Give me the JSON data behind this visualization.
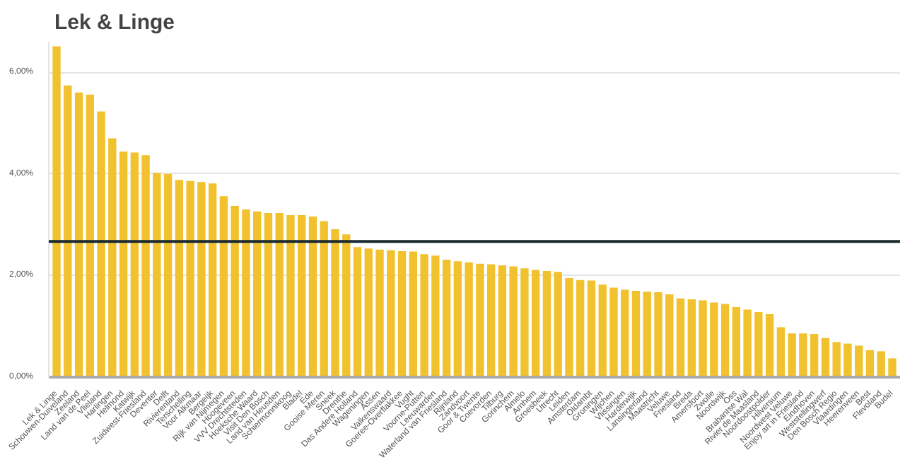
{
  "chart_data": {
    "type": "bar",
    "title": "Lek & Linge",
    "categories": [
      "Lek & Linge",
      "Schouwen-Duiveland",
      "Zeeland",
      "Land van de Peel",
      "Vlieland",
      "Harlingen",
      "Helmond",
      "Katwijk",
      "Zuidwest-Friesland",
      "Deventer",
      "Delft",
      "Rivierenland",
      "Terschelling",
      "Voor Alkmaar",
      "Bergeijk",
      "Rijk van Nijmegen",
      "Hoogeveen",
      "VVV Drechtsteden",
      "Hoeksche Waard",
      "Visit Den Bosch",
      "Land van Heusden",
      "Schiermonnikoog",
      "Bladel",
      "Ede",
      "Gooise Meren",
      "Sneek",
      "Drenthe",
      "Das Andere Holland",
      "Wageningen",
      "Assen",
      "Valkenswaard",
      "Goeree-Overflakkee",
      "Vught",
      "Voorne-Putten",
      "Leeuwarden",
      "Waterland van Friesland",
      "Rijnland",
      "Zandvoort",
      "Goor & Twente",
      "Coevorden",
      "Tilburg",
      "Gorinchem",
      "Almelo",
      "Arnhem",
      "Groesbeek",
      "Utrecht",
      "Leiden",
      "Amsterdam",
      "Oldambt",
      "Groningen",
      "Wijchen",
      "Vlissingen",
      "Harderwijk",
      "Lansingerland",
      "Maastricht",
      "Veluwe",
      "Friesland",
      "Breda",
      "Amersfoort",
      "Zwolle",
      "Noordwijk",
      "Oss",
      "Brabantse Wal",
      "Rivier de Maasland",
      "Noordoostpolder",
      "Hilversum",
      "Noordwest Veluwe",
      "Enjoy art in Friesland",
      "Eindhoven",
      "Weststellingwerf",
      "Den Bosch Regio",
      "Vlaardingen",
      "Heerenveen",
      "Best",
      "Flevoland",
      "Budel"
    ],
    "values": [
      6.51,
      5.74,
      5.6,
      5.56,
      5.23,
      4.7,
      4.44,
      4.42,
      4.37,
      4.02,
      4.0,
      3.88,
      3.86,
      3.84,
      3.81,
      3.56,
      3.37,
      3.3,
      3.26,
      3.23,
      3.23,
      3.19,
      3.19,
      3.16,
      3.07,
      2.91,
      2.81,
      2.56,
      2.53,
      2.51,
      2.5,
      2.48,
      2.47,
      2.42,
      2.39,
      2.31,
      2.28,
      2.26,
      2.23,
      2.22,
      2.2,
      2.18,
      2.14,
      2.11,
      2.09,
      2.07,
      1.95,
      1.91,
      1.9,
      1.82,
      1.76,
      1.72,
      1.7,
      1.68,
      1.67,
      1.63,
      1.55,
      1.53,
      1.51,
      1.47,
      1.44,
      1.38,
      1.33,
      1.28,
      1.24,
      0.98,
      0.86,
      0.86,
      0.85,
      0.77,
      0.69,
      0.66,
      0.62,
      0.53,
      0.51,
      0.37
    ],
    "color": "#f2c12e",
    "ylim": [
      0,
      6.6
    ],
    "yticks": [
      {
        "value": 0,
        "label": "0,00%"
      },
      {
        "value": 2,
        "label": "2,00%"
      },
      {
        "value": 4,
        "label": "4,00%"
      },
      {
        "value": 6,
        "label": "6,00%"
      }
    ],
    "grid": "y",
    "ref_lines": [
      {
        "axis": "y",
        "value": 2.67,
        "color": "#1a2a30"
      }
    ]
  }
}
